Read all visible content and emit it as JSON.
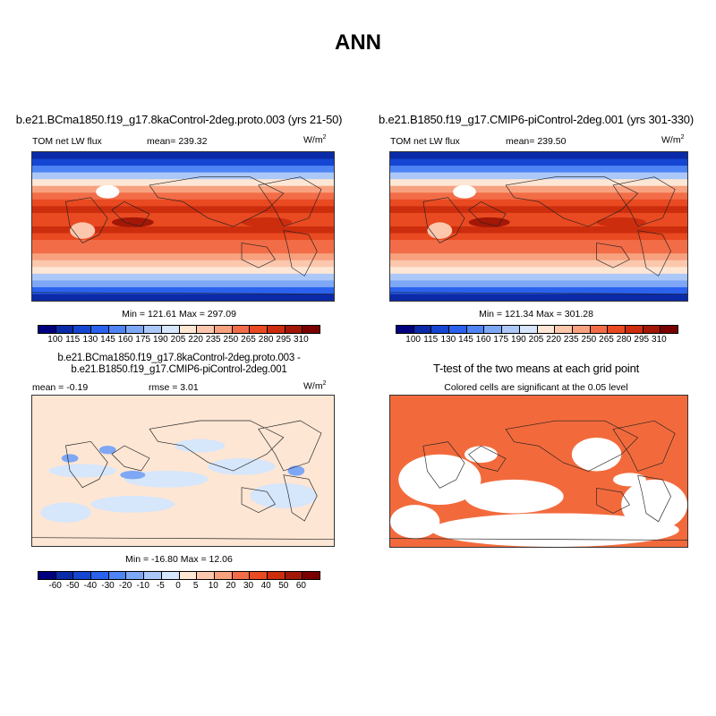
{
  "title": "ANN",
  "panels": [
    {
      "title": "b.e21.BCma1850.f19_g17.8kaControl-2deg.proto.003 (yrs 21-50)",
      "left": "TOM net LW flux",
      "center": "mean= 239.32",
      "units": "W/m",
      "units_sup": "2",
      "minmax": "Min = 121.61 Max = 297.09"
    },
    {
      "title": "b.e21.B1850.f19_g17.CMIP6-piControl-2deg.001 (yrs 301-330)",
      "left": "TOM net LW flux",
      "center": "mean= 239.50",
      "units": "W/m",
      "units_sup": "2",
      "minmax": "Min = 121.34 Max = 301.28"
    },
    {
      "title": "b.e21.BCma1850.f19_g17.8kaControl-2deg.proto.003 - b.e21.B1850.f19_g17.CMIP6-piControl-2deg.001",
      "left": "mean =  -0.19",
      "center": "rmse =   3.01",
      "units": "W/m",
      "units_sup": "2",
      "minmax": "Min = -16.80 Max = 12.06"
    },
    {
      "title": "T-test of the two means at each grid point",
      "center": "Colored cells are significant at the 0.05 level"
    }
  ],
  "colorbar_abs": {
    "labels": [
      "100",
      "115",
      "130",
      "145",
      "160",
      "175",
      "190",
      "205",
      "220",
      "235",
      "250",
      "265",
      "280",
      "295",
      "310"
    ]
  },
  "colorbar_diff": {
    "labels": [
      "-60",
      "-50",
      "-40",
      "-30",
      "-20",
      "-10",
      "-5",
      "0",
      "5",
      "10",
      "20",
      "30",
      "40",
      "50",
      "60"
    ]
  },
  "colors": [
    "#00007f",
    "#0a2aa8",
    "#1446d2",
    "#2a62ee",
    "#4f84f4",
    "#7ea7f6",
    "#abc8f9",
    "#d6e6fb",
    "#fde6d4",
    "#fbc7ad",
    "#f8a17f",
    "#f26d47",
    "#e94a21",
    "#cc2d0d",
    "#a31707",
    "#7a0000"
  ],
  "ttest_color": "#f26a3c"
}
